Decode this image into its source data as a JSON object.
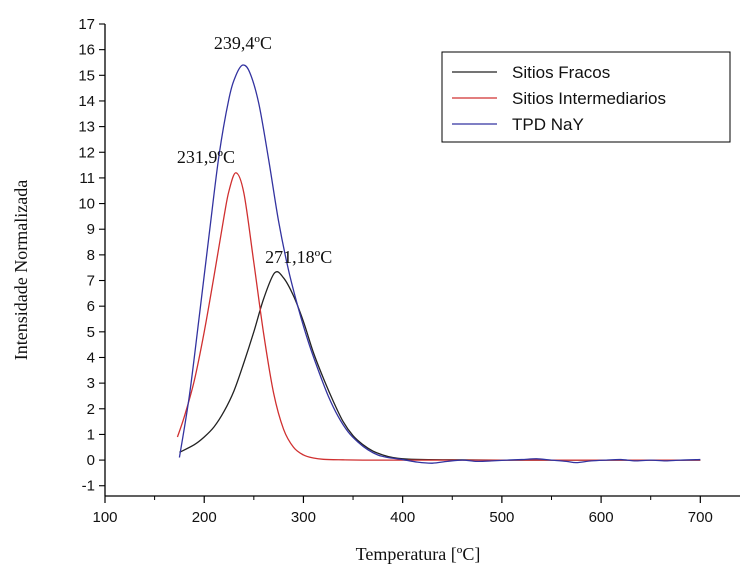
{
  "chart_data": {
    "type": "line",
    "title": "",
    "xlabel": "Temperatura [ºC]",
    "ylabel": "Intensidade Normalizada",
    "xlim": [
      100,
      740
    ],
    "ylim": [
      -1.4,
      17
    ],
    "xticks": [
      100,
      200,
      300,
      400,
      500,
      600,
      700
    ],
    "yticks": [
      -1,
      0,
      1,
      2,
      3,
      4,
      5,
      6,
      7,
      8,
      9,
      10,
      11,
      12,
      13,
      14,
      15,
      16,
      17
    ],
    "legend_position": "top-right",
    "series": [
      {
        "name": "Sitios Fracos",
        "color": "#222222",
        "x": [
          175,
          190,
          200,
          210,
          220,
          230,
          240,
          250,
          260,
          271,
          280,
          290,
          300,
          310,
          320,
          330,
          340,
          350,
          360,
          370,
          380,
          390,
          400,
          420,
          450,
          500,
          550,
          600,
          650,
          700
        ],
        "y": [
          0.3,
          0.6,
          0.9,
          1.3,
          1.9,
          2.7,
          3.8,
          5.0,
          6.3,
          7.3,
          7.1,
          6.4,
          5.4,
          4.2,
          3.2,
          2.3,
          1.5,
          0.95,
          0.6,
          0.35,
          0.2,
          0.1,
          0.05,
          0.02,
          0.01,
          0.0,
          0.0,
          0.0,
          0.0,
          0.0
        ]
      },
      {
        "name": "Sitios Intermediarios",
        "color": "#d03030",
        "x": [
          173,
          180,
          190,
          200,
          210,
          220,
          225,
          232,
          240,
          250,
          260,
          270,
          280,
          290,
          300,
          310,
          320,
          340,
          360,
          400,
          450,
          500,
          600,
          700
        ],
        "y": [
          0.9,
          1.7,
          3.1,
          5.0,
          7.2,
          9.5,
          10.5,
          11.2,
          10.4,
          7.7,
          4.9,
          2.6,
          1.2,
          0.5,
          0.2,
          0.08,
          0.03,
          0.01,
          0.0,
          0.0,
          0.0,
          0.0,
          0.0,
          0.0
        ]
      },
      {
        "name": "TPD NaY",
        "color": "#3333a0",
        "x": [
          175,
          185,
          195,
          205,
          215,
          225,
          232,
          239,
          246,
          255,
          265,
          275,
          285,
          295,
          305,
          315,
          325,
          335,
          345,
          355,
          365,
          375,
          385,
          400,
          415,
          430,
          445,
          460,
          475,
          490,
          505,
          520,
          535,
          550,
          565,
          575,
          590,
          605,
          620,
          635,
          650,
          665,
          680,
          700
        ],
        "y": [
          0.1,
          2.5,
          5.6,
          8.8,
          11.9,
          14.1,
          15.0,
          15.4,
          15.1,
          13.9,
          11.7,
          9.3,
          7.4,
          5.9,
          4.6,
          3.5,
          2.5,
          1.7,
          1.1,
          0.7,
          0.4,
          0.2,
          0.1,
          0.02,
          -0.08,
          -0.12,
          -0.05,
          0.0,
          -0.05,
          -0.03,
          0.0,
          0.02,
          0.05,
          0.0,
          -0.05,
          -0.1,
          -0.03,
          0.0,
          0.02,
          -0.03,
          0.0,
          -0.03,
          0.0,
          0.02
        ]
      }
    ],
    "annotations": [
      {
        "text": "239,4ºC",
        "x": 239,
        "y": 15.4
      },
      {
        "text": "231,9ºC",
        "x": 232,
        "y": 11.2
      },
      {
        "text": "271,18ºC",
        "x": 271,
        "y": 7.3
      }
    ]
  }
}
